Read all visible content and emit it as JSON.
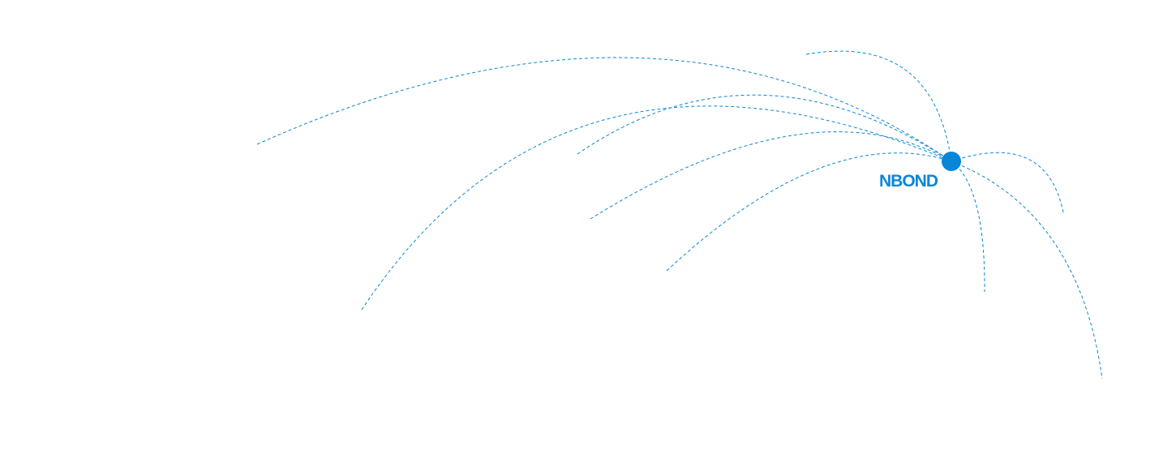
{
  "hub": {
    "label": "NBOND"
  },
  "colors": {
    "accent": "#0a86d8"
  }
}
